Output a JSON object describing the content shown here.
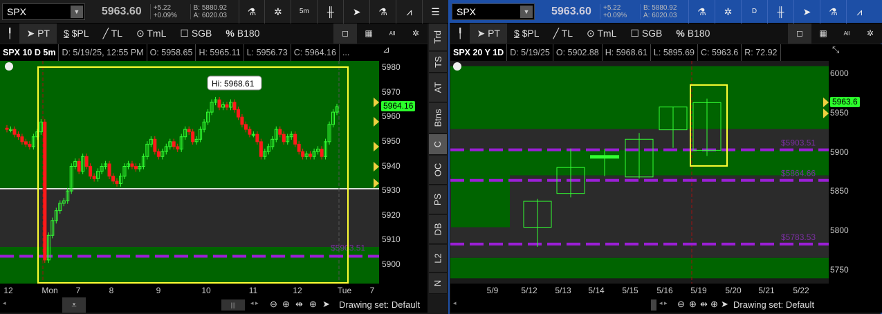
{
  "left": {
    "symbol": "SPX",
    "last": "5963.60",
    "change": "+5.22",
    "change_pct": "+0.09%",
    "bid": "B: 5880.92",
    "ask": "A: 6020.03",
    "timeframe_btn": "5m",
    "toolbar": [
      "PT",
      "$PL",
      "TL",
      "TmL",
      "SGB",
      "B180"
    ],
    "toolbar_right": [
      "All"
    ],
    "info": {
      "title": "SPX 10 D 5m",
      "d": "D: 5/19/25, 12:55 PM",
      "o": "O: 5958.65",
      "h": "H: 5965.11",
      "l": "L: 5956.73",
      "c": "C: 5964.16",
      "more": "..."
    },
    "price_ticks": [
      5980,
      5970,
      5960,
      5950,
      5940,
      5930,
      5920,
      5910,
      5900
    ],
    "current_price_tag": "5964.16",
    "hi_bubble": "Hi: 5968.61",
    "level_label": "$5903.51",
    "level": 5903.51,
    "x_ticks": [
      "12",
      "Mon",
      "7",
      "8",
      "9",
      "10",
      "11",
      "12",
      "Tue",
      "7"
    ],
    "zones": [
      {
        "from": 5930.9,
        "to": 5990,
        "color": "#006400"
      },
      {
        "from": 5907.3,
        "to": 5930.9,
        "color": "#2b2b2b"
      },
      {
        "from": 5890,
        "to": 5907.3,
        "color": "#006400"
      }
    ],
    "closes": [
      5955,
      5955,
      5953,
      5952,
      5950,
      5949,
      5948,
      5952,
      5954,
      5958,
      5902,
      5912,
      5918,
      5922,
      5925,
      5926,
      5930,
      5940,
      5942,
      5938,
      5944,
      5940,
      5936,
      5935,
      5938,
      5940,
      5941,
      5936,
      5934,
      5933,
      5936,
      5940,
      5941,
      5940,
      5939,
      5940,
      5944,
      5949,
      5951,
      5946,
      5944,
      5946,
      5948,
      5950,
      5948,
      5947,
      5952,
      5955,
      5954,
      5950,
      5951,
      5955,
      5958,
      5962,
      5966,
      5967,
      5964,
      5965,
      5964,
      5966,
      5963,
      5960,
      5957,
      5955,
      5953,
      5953,
      5950,
      5944,
      5946,
      5948,
      5951,
      5955,
      5953,
      5950,
      5952,
      5953,
      5949,
      5946,
      5944,
      5945,
      5944,
      5946,
      5947,
      5944,
      5950,
      5957,
      5962,
      5964.16
    ],
    "drawing_set": "Drawing set: Default"
  },
  "tabs": [
    "Trd",
    "TS",
    "AT",
    "Btns",
    "C",
    "OC",
    "PS",
    "DB",
    "L2",
    "N"
  ],
  "active_tab": "C",
  "right": {
    "symbol": "SPX",
    "last": "5963.60",
    "change": "+5.22",
    "change_pct": "+0.09%",
    "bid": "B: 5880.92",
    "ask": "A: 6020.03",
    "timeframe_btn": "D",
    "toolbar": [
      "PT",
      "$PL",
      "TL",
      "TmL",
      "SGB",
      "B180"
    ],
    "toolbar_right": [
      "All"
    ],
    "info": {
      "title": "SPX 20 Y 1D",
      "d": "D: 5/19/25",
      "o": "O: 5902.88",
      "h": "H: 5968.61",
      "l": "L: 5895.69",
      "c": "C: 5963.6",
      "r": "R: 72.92"
    },
    "price_ticks": [
      6000,
      5950,
      5900,
      5850,
      5800,
      5750
    ],
    "current_price_tag": "5963.6",
    "levels": [
      {
        "value": 5903.51,
        "label": "$5903.51"
      },
      {
        "value": 5864.66,
        "label": "$5864.66"
      },
      {
        "value": 5783.53,
        "label": "$5783.53"
      }
    ],
    "x_ticks": [
      "5/9",
      "5/12",
      "5/13",
      "5/14",
      "5/15",
      "5/16",
      "5/19",
      "5/20",
      "5/21",
      "5/22"
    ],
    "zones": [
      {
        "from": 5930,
        "to": 6010,
        "color": "#006400"
      },
      {
        "from": 5903,
        "to": 5930,
        "color": "#2b2b2b"
      },
      {
        "from": 5871,
        "to": 5903,
        "color": "#006400"
      },
      {
        "from": 5766,
        "to": 5871,
        "color": "#2b2b2b"
      },
      {
        "from": 5740,
        "to": 5766,
        "color": "#006400"
      }
    ],
    "candles": [
      {
        "date": "5/12",
        "o": 5805,
        "h": 5841,
        "l": 5780,
        "c": 5838
      },
      {
        "date": "5/13",
        "o": 5848,
        "h": 5905,
        "l": 5843,
        "c": 5881
      },
      {
        "date": "5/14",
        "o": 5893,
        "h": 5905,
        "l": 5870,
        "c": 5895
      },
      {
        "date": "5/15",
        "o": 5869,
        "h": 5925,
        "l": 5867,
        "c": 5917
      },
      {
        "date": "5/16",
        "o": 5929,
        "h": 5958,
        "l": 5906,
        "c": 5958
      },
      {
        "date": "5/19",
        "o": 5902.88,
        "h": 5968.61,
        "l": 5895.69,
        "c": 5963.6
      }
    ],
    "drawing_set": "Drawing set: Default"
  },
  "colors": {
    "up": "#33ff33",
    "down": "#ff1a1a",
    "level": "#9b1fd6",
    "highlight": "#ffff33",
    "right_header": "#1d4fa6"
  }
}
